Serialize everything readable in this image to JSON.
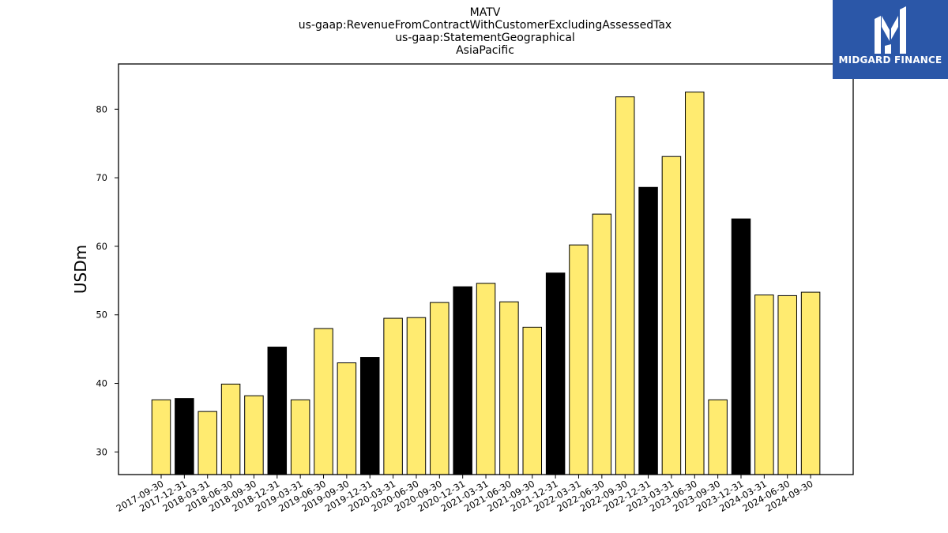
{
  "chart_data": {
    "type": "bar",
    "title_lines": [
      "MATV",
      "us-gaap:RevenueFromContractWithCustomerExcludingAssessedTax",
      "us-gaap:StatementGeographical",
      "AsiaPacific"
    ],
    "xlabel": "",
    "ylabel": "USDm",
    "categories": [
      "2017-09-30",
      "2017-12-31",
      "2018-03-31",
      "2018-06-30",
      "2018-09-30",
      "2018-12-31",
      "2019-03-31",
      "2019-06-30",
      "2019-09-30",
      "2019-12-31",
      "2020-03-31",
      "2020-06-30",
      "2020-09-30",
      "2020-12-31",
      "2021-03-31",
      "2021-06-30",
      "2021-09-30",
      "2021-12-31",
      "2022-03-31",
      "2022-06-30",
      "2022-09-30",
      "2022-12-31",
      "2023-03-31",
      "2023-06-30",
      "2023-09-30",
      "2023-12-31",
      "2024-03-31",
      "2024-06-30",
      "2024-09-30"
    ],
    "values": [
      37.6,
      37.8,
      35.9,
      39.9,
      38.2,
      45.3,
      37.6,
      48.0,
      43.0,
      43.8,
      49.5,
      49.6,
      51.8,
      54.1,
      54.6,
      51.9,
      48.2,
      56.1,
      60.2,
      64.7,
      81.8,
      68.6,
      73.1,
      82.5,
      37.6,
      64.0,
      52.9,
      52.8,
      53.3
    ],
    "year_end_flags": [
      false,
      true,
      false,
      false,
      false,
      true,
      false,
      false,
      false,
      true,
      false,
      false,
      false,
      true,
      false,
      false,
      false,
      true,
      false,
      false,
      false,
      true,
      false,
      false,
      false,
      true,
      false,
      false,
      false
    ],
    "colors": {
      "quarter": "#ffeb70",
      "year_end": "#000000",
      "edge": "#000000"
    },
    "ylim": [
      26.7,
      86.6
    ],
    "yticks": [
      30,
      40,
      50,
      60,
      70,
      80
    ],
    "grid": false,
    "legend": "none"
  },
  "logo": {
    "text": "MIDGARD FINANCE",
    "icon": "midgard-m-logo-icon",
    "background": "#2b57a8"
  }
}
